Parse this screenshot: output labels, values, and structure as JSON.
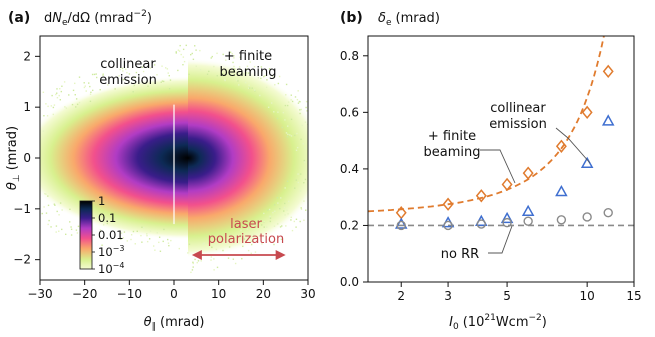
{
  "chart_data": [
    {
      "type": "heatmap",
      "panel": "(a)",
      "title": "dN_e/dΩ (mrad^-2)",
      "title_parts": {
        "d1": "d",
        "N": "N",
        "sub_e": "e",
        "rest": "/dΩ (mrad",
        "exp": "−2",
        "close": ")"
      },
      "xlabel_symbol": "θ",
      "xlabel_sub": "∥",
      "xlabel_unit": "(mrad)",
      "ylabel_symbol": "θ",
      "ylabel_sub": "⊥",
      "ylabel_unit": "(mrad)",
      "xlim": [
        -30,
        30
      ],
      "ylim": [
        -2.4,
        2.4
      ],
      "xticks": [
        "−30",
        "−20",
        "−10",
        "0",
        "10",
        "20",
        "30"
      ],
      "xtick_values": [
        -30,
        -20,
        -10,
        0,
        10,
        20,
        30
      ],
      "yticks": [
        "−2",
        "−1",
        "0",
        "1",
        "2"
      ],
      "ytick_values": [
        -2,
        -1,
        0,
        1,
        2
      ],
      "halves": [
        "collinear emission",
        "+ finite beaming"
      ],
      "annotations": {
        "left_line1": "collinear",
        "left_line2": "emission",
        "right_line1": "+ finite",
        "right_line2": "beaming",
        "laser_line1": "laser",
        "laser_line2": "polarization"
      },
      "arrow_range": [
        4,
        25
      ],
      "colorbar": {
        "scale": "log",
        "ticks": [
          {
            "value": 1,
            "label": "1",
            "exp": ""
          },
          {
            "value": 0.1,
            "label": "0.1",
            "exp": ""
          },
          {
            "value": 0.01,
            "label": "0.01",
            "exp": ""
          },
          {
            "value": 0.001,
            "label": "10",
            "exp": "−3"
          },
          {
            "value": 0.0001,
            "label": "10",
            "exp": "−4"
          }
        ],
        "colors": [
          "#f4fbd2",
          "#d8f08e",
          "#f9a86b",
          "#f2508c",
          "#b13cc4",
          "#3a1d8a",
          "#0d2a55",
          "#000000"
        ]
      }
    },
    {
      "type": "scatter",
      "panel": "(b)",
      "title_symbol": "δ",
      "title_sub": "e",
      "title_unit": "(mrad)",
      "xlabel_symbol": "I",
      "xlabel_sub": "0",
      "xlabel_unit_a": "(10",
      "xlabel_exp": "21",
      "xlabel_unit_b": "Wcm",
      "xlabel_exp2": "−2",
      "xlabel_close": ")",
      "xscale": "log",
      "xlim": [
        1.5,
        15
      ],
      "ylim": [
        0,
        0.87
      ],
      "xticks": [
        "2",
        "3",
        "5",
        "10",
        "15"
      ],
      "xtick_values": [
        2,
        3,
        5,
        10,
        15
      ],
      "yticks": [
        "0.0",
        "0.2",
        "0.4",
        "0.6",
        "0.8"
      ],
      "ytick_values": [
        0,
        0.2,
        0.4,
        0.6,
        0.8
      ],
      "series": [
        {
          "marker": "diamond",
          "color": "#e07b2e",
          "x": [
            2,
            3,
            4,
            5,
            6,
            8,
            10,
            12
          ],
          "y": [
            0.245,
            0.275,
            0.305,
            0.345,
            0.385,
            0.48,
            0.6,
            0.745
          ]
        },
        {
          "marker": "triangle",
          "color": "#3f6fd0",
          "x": [
            2,
            3,
            4,
            5,
            6,
            8,
            10,
            12
          ],
          "y": [
            0.205,
            0.21,
            0.215,
            0.225,
            0.25,
            0.32,
            0.42,
            0.57
          ]
        },
        {
          "marker": "circle",
          "color": "#8a8a8a",
          "x": [
            2,
            3,
            4,
            5,
            6,
            8,
            10,
            12
          ],
          "y": [
            0.2,
            0.2,
            0.205,
            0.21,
            0.215,
            0.22,
            0.23,
            0.245
          ]
        }
      ],
      "fit_curve": {
        "color": "#e07b2e",
        "style": "dashed",
        "y0": 0.2,
        "a": 0.0375,
        "b": 0.25
      },
      "baseline": {
        "color": "#8a8a8a",
        "style": "dashed",
        "y": 0.2
      },
      "annotations": {
        "collinear_line1": "collinear",
        "collinear_line2": "emission",
        "finite_line1": "+ finite",
        "finite_line2": "beaming",
        "norr": "no RR"
      }
    }
  ]
}
